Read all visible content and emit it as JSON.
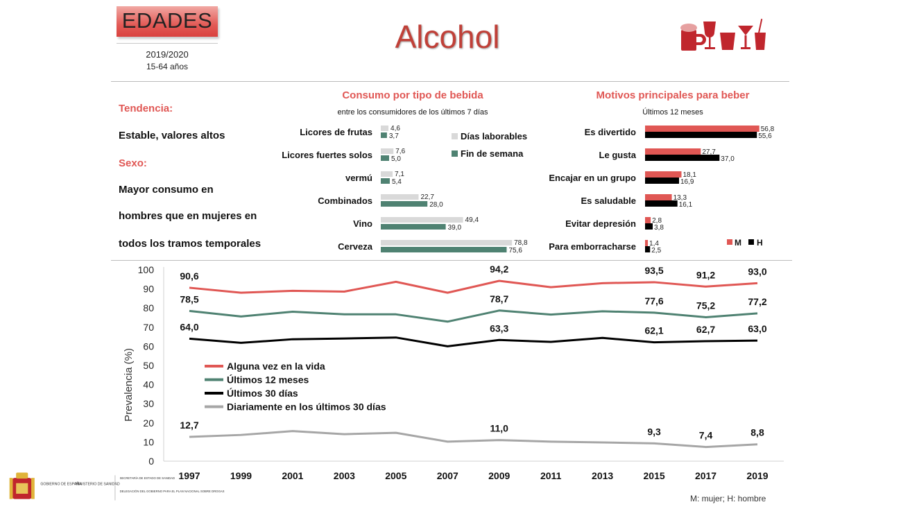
{
  "header": {
    "edades_label": "EDADES",
    "year": "2019/2020",
    "age_range": "15-64 años",
    "title": "Alcohol",
    "colors": {
      "accent": "#e05754",
      "title": "#c04038",
      "drinks_icon": "#c0262d"
    },
    "icon": "drinks-icon"
  },
  "side": {
    "trend_label": "Tendencia:",
    "trend_value": "Estable, valores altos",
    "sex_label": "Sexo:",
    "sex_lines": [
      "Mayor consumo en",
      "hombres que en mujeres en",
      "todos los tramos temporales"
    ]
  },
  "drinks_panel": {
    "title": "Consumo por tipo de bebida",
    "subtitle": "entre los consumidores de los últimos 7 días"
  },
  "motives_panel": {
    "title": "Motivos principales para beber",
    "subtitle": "Últimos 12 meses"
  },
  "footer": {
    "note": "M: mujer; H: hombre",
    "logo_lines": [
      "GOBIERNO DE ESPAÑA",
      "MINISTERIO DE SANIDAD",
      "SECRETARÍA DE ESTADO DE SANIDAD",
      "DELEGACIÓN DEL GOBIERNO PARA EL PLAN NACIONAL SOBRE DROGAS"
    ]
  },
  "chart_data": [
    {
      "type": "bar",
      "orientation": "horizontal",
      "title": "Consumo por tipo de bebida",
      "subtitle": "entre los consumidores de los últimos 7 días",
      "categories": [
        "Licores de frutas",
        "Licores fuertes solos",
        "vermú",
        "Combinados",
        "Vino",
        "Cerveza"
      ],
      "series": [
        {
          "name": "Días laborables",
          "color": "#d9d9d9",
          "values": [
            4.6,
            7.6,
            7.1,
            22.7,
            49.4,
            78.8
          ],
          "labels": [
            "4,6",
            "7,6",
            "7,1",
            "22,7",
            "49,4",
            "78,8"
          ]
        },
        {
          "name": "Fin de semana",
          "color": "#4f8272",
          "values": [
            3.7,
            5.0,
            5.4,
            28.0,
            39.0,
            75.6
          ],
          "labels": [
            "3,7",
            "5,0",
            "5,4",
            "28,0",
            "39,0",
            "75,6"
          ]
        }
      ],
      "xlim": [
        0,
        100
      ],
      "legend": "top-right"
    },
    {
      "type": "bar",
      "orientation": "horizontal",
      "title": "Motivos principales para beber",
      "subtitle": "Últimos 12 meses",
      "categories": [
        "Es divertido",
        "Le gusta",
        "Encajar en un grupo",
        "Es saludable",
        "Evitar depresión",
        "Para emborracharse"
      ],
      "series": [
        {
          "name": "M",
          "color": "#e05754",
          "values": [
            56.8,
            27.7,
            18.1,
            13.3,
            2.8,
            1.4
          ],
          "labels": [
            "56,8",
            "27,7",
            "18,1",
            "13,3",
            "2,8",
            "1,4"
          ]
        },
        {
          "name": "H",
          "color": "#000000",
          "values": [
            55.6,
            37.0,
            16.9,
            16.1,
            3.8,
            2.5
          ],
          "labels": [
            "55,6",
            "37,0",
            "16,9",
            "16,1",
            "3,8",
            "2,5"
          ]
        }
      ],
      "xlim": [
        0,
        60
      ],
      "legend": "bottom-right"
    },
    {
      "type": "line",
      "ylabel": "Prevalencia (%)",
      "x": [
        "1997",
        "1999",
        "2001",
        "2003",
        "2005",
        "2007",
        "2009",
        "2011",
        "2013",
        "2015",
        "2017",
        "2019"
      ],
      "ylim": [
        0,
        100
      ],
      "yticks": [
        0,
        10,
        20,
        30,
        40,
        50,
        60,
        70,
        80,
        90,
        100
      ],
      "series": [
        {
          "name": "Alguna vez en la vida",
          "color": "#e05754",
          "values": [
            90.6,
            88.0,
            89.0,
            88.6,
            93.7,
            88.0,
            94.2,
            90.9,
            93.0,
            93.5,
            91.2,
            93.0
          ],
          "labeled": [
            0,
            6,
            9,
            10,
            11
          ],
          "labels": [
            "90,6",
            "94,2",
            "93,5",
            "91,2",
            "93,0"
          ]
        },
        {
          "name": "Últimos 12 meses",
          "color": "#4f8272",
          "values": [
            78.5,
            75.6,
            78.1,
            76.7,
            76.7,
            72.9,
            78.7,
            76.6,
            78.3,
            77.6,
            75.2,
            77.2
          ],
          "labeled": [
            0,
            6,
            9,
            10,
            11
          ],
          "labels": [
            "78,5",
            "78,7",
            "77,6",
            "75,2",
            "77,2"
          ]
        },
        {
          "name": "Últimos 30 días",
          "color": "#000000",
          "values": [
            64.0,
            61.8,
            63.7,
            64.1,
            64.6,
            60.0,
            63.3,
            62.3,
            64.4,
            62.1,
            62.7,
            63.0
          ],
          "labeled": [
            0,
            6,
            9,
            10,
            11
          ],
          "labels": [
            "64,0",
            "63,3",
            "62,1",
            "62,7",
            "63,0"
          ]
        },
        {
          "name": "Diariamente en los últimos 30 días",
          "color": "#a6a6a6",
          "values": [
            12.7,
            13.7,
            15.7,
            14.1,
            14.8,
            10.2,
            11.0,
            10.2,
            9.8,
            9.3,
            7.4,
            8.8
          ],
          "labeled": [
            0,
            6,
            9,
            10,
            11
          ],
          "labels": [
            "12,7",
            "11,0",
            "9,3",
            "7,4",
            "8,8"
          ]
        }
      ],
      "grid": false,
      "legend": "middle-left"
    }
  ]
}
